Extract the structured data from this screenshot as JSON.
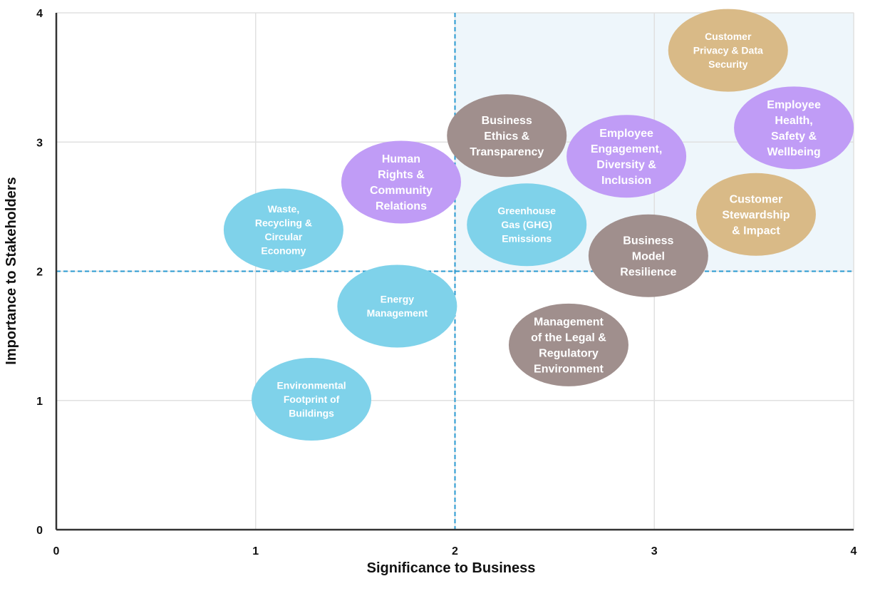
{
  "chart_data": {
    "type": "scatter",
    "title": "",
    "xlabel": "Significance to Business",
    "ylabel": "Importance to Stakeholders",
    "xlim": [
      0,
      4
    ],
    "ylim": [
      0,
      4
    ],
    "xticks": [
      "0",
      "1",
      "2",
      "3",
      "4"
    ],
    "yticks": [
      "0",
      "1",
      "2",
      "3",
      "4"
    ],
    "grid": true,
    "threshold_lines": {
      "x": 2,
      "y": 2,
      "style": "dashed",
      "color": "#2a9ad0"
    },
    "highlight_quadrant": {
      "x_min": 2,
      "y_min": 2,
      "color": "#eef6fb"
    },
    "colors": {
      "tan": "#d9ba87",
      "purple": "#c09cf6",
      "taupe": "#a08f8d",
      "cyan": "#7fd2ea"
    },
    "points": [
      {
        "lines": [
          "Customer",
          "Privacy & Data",
          "Security"
        ],
        "x": 3.37,
        "y": 3.71,
        "color": "tan"
      },
      {
        "lines": [
          "Employee",
          "Health,",
          "Safety &",
          "Wellbeing"
        ],
        "x": 3.7,
        "y": 3.11,
        "color": "purple"
      },
      {
        "lines": [
          "Business",
          "Ethics &",
          "Transparency"
        ],
        "x": 2.26,
        "y": 3.05,
        "color": "taupe"
      },
      {
        "lines": [
          "Employee",
          "Engagement,",
          "Diversity &",
          "Inclusion"
        ],
        "x": 2.86,
        "y": 2.89,
        "color": "purple"
      },
      {
        "lines": [
          "Human",
          "Rights &",
          "Community",
          "Relations"
        ],
        "x": 1.73,
        "y": 2.69,
        "color": "purple"
      },
      {
        "lines": [
          "Waste,",
          "Recycling &",
          "Circular",
          "Economy"
        ],
        "x": 1.14,
        "y": 2.32,
        "color": "cyan"
      },
      {
        "lines": [
          "Greenhouse",
          "Gas (GHG)",
          "Emissions"
        ],
        "x": 2.36,
        "y": 2.36,
        "color": "cyan"
      },
      {
        "lines": [
          "Customer",
          "Stewardship",
          "& Impact"
        ],
        "x": 3.51,
        "y": 2.44,
        "color": "tan"
      },
      {
        "lines": [
          "Business",
          "Model",
          "Resilience"
        ],
        "x": 2.97,
        "y": 2.12,
        "color": "taupe"
      },
      {
        "lines": [
          "Energy",
          "Management"
        ],
        "x": 1.71,
        "y": 1.73,
        "color": "cyan"
      },
      {
        "lines": [
          "Management",
          "of the Legal &",
          "Regulatory",
          "Environment"
        ],
        "x": 2.57,
        "y": 1.43,
        "color": "taupe"
      },
      {
        "lines": [
          "Environmental",
          "Footprint of",
          "Buildings"
        ],
        "x": 1.28,
        "y": 1.01,
        "color": "cyan"
      }
    ]
  }
}
